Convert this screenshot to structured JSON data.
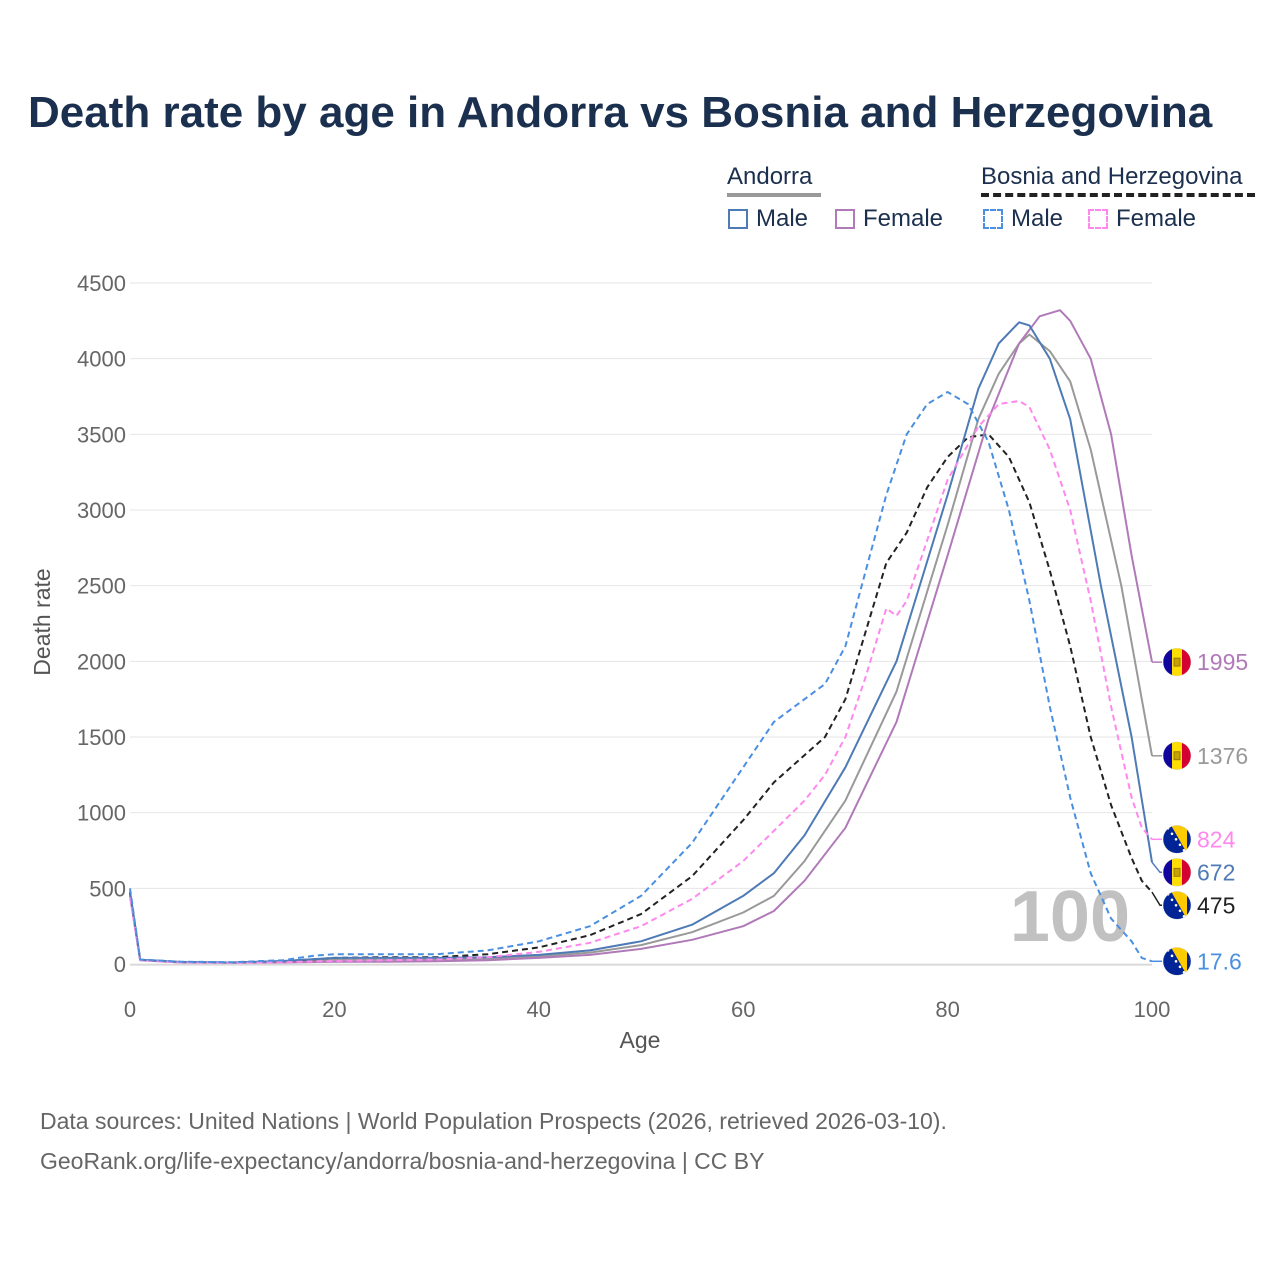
{
  "title": "Death rate by age in Andorra vs Bosnia and Herzegovina",
  "legend": {
    "groups": [
      {
        "label": "Andorra",
        "line_color": "#999999",
        "line_style": "solid",
        "items": [
          {
            "label": "Male",
            "color": "#4e7ab5",
            "style": "solid"
          },
          {
            "label": "Female",
            "color": "#b07ab8",
            "style": "solid"
          }
        ]
      },
      {
        "label": "Bosnia and Herzegovina",
        "line_color": "#222222",
        "line_style": "dashed",
        "items": [
          {
            "label": "Male",
            "color": "#4a8fe0",
            "style": "dashed"
          },
          {
            "label": "Female",
            "color": "#ff88ee",
            "style": "dashed"
          }
        ]
      }
    ]
  },
  "year_watermark": "100",
  "footer": {
    "line1": "Data sources: United Nations | World Population Prospects (2026, retrieved 2026-03-10).",
    "line2": "GeoRank.org/life-expectancy/andorra/bosnia-and-herzegovina | CC BY"
  },
  "chart_data": {
    "type": "line",
    "title": "Death rate by age in Andorra vs Bosnia and Herzegovina",
    "xlabel": "Age",
    "ylabel": "Death rate",
    "xlim": [
      0,
      100
    ],
    "ylim": [
      0,
      4500
    ],
    "xticks": [
      0,
      20,
      40,
      60,
      80,
      100
    ],
    "yticks": [
      0,
      500,
      1000,
      1500,
      2000,
      2500,
      3000,
      3500,
      4000,
      4500
    ],
    "grid": true,
    "series": [
      {
        "name": "Andorra Male",
        "country": "Andorra",
        "sex": "Male",
        "color": "#4e7ab5",
        "dash": false,
        "end_label": "672",
        "points": [
          [
            0,
            480
          ],
          [
            1,
            28
          ],
          [
            5,
            13
          ],
          [
            10,
            10
          ],
          [
            15,
            20
          ],
          [
            20,
            40
          ],
          [
            25,
            40
          ],
          [
            30,
            40
          ],
          [
            35,
            45
          ],
          [
            40,
            60
          ],
          [
            45,
            90
          ],
          [
            50,
            150
          ],
          [
            55,
            260
          ],
          [
            60,
            450
          ],
          [
            63,
            600
          ],
          [
            66,
            850
          ],
          [
            70,
            1300
          ],
          [
            75,
            2000
          ],
          [
            80,
            3100
          ],
          [
            83,
            3800
          ],
          [
            85,
            4100
          ],
          [
            87,
            4240
          ],
          [
            88,
            4220
          ],
          [
            90,
            4000
          ],
          [
            92,
            3600
          ],
          [
            95,
            2500
          ],
          [
            98,
            1500
          ],
          [
            100,
            672
          ]
        ]
      },
      {
        "name": "Andorra Female",
        "country": "Andorra",
        "sex": "Female",
        "color": "#b07ab8",
        "dash": false,
        "end_label": "1995",
        "points": [
          [
            0,
            450
          ],
          [
            1,
            25
          ],
          [
            5,
            10
          ],
          [
            10,
            8
          ],
          [
            15,
            10
          ],
          [
            20,
            15
          ],
          [
            25,
            15
          ],
          [
            30,
            18
          ],
          [
            35,
            25
          ],
          [
            40,
            40
          ],
          [
            45,
            60
          ],
          [
            50,
            100
          ],
          [
            55,
            160
          ],
          [
            60,
            250
          ],
          [
            63,
            350
          ],
          [
            66,
            550
          ],
          [
            70,
            900
          ],
          [
            75,
            1600
          ],
          [
            80,
            2700
          ],
          [
            84,
            3600
          ],
          [
            87,
            4100
          ],
          [
            89,
            4280
          ],
          [
            91,
            4320
          ],
          [
            92,
            4250
          ],
          [
            94,
            4000
          ],
          [
            96,
            3500
          ],
          [
            98,
            2700
          ],
          [
            100,
            1995
          ]
        ]
      },
      {
        "name": "Andorra Total",
        "country": "Andorra",
        "sex": "Total",
        "color": "#999999",
        "dash": false,
        "end_label": "1376",
        "points": [
          [
            0,
            465
          ],
          [
            1,
            26
          ],
          [
            5,
            12
          ],
          [
            10,
            9
          ],
          [
            15,
            15
          ],
          [
            20,
            28
          ],
          [
            25,
            28
          ],
          [
            30,
            30
          ],
          [
            35,
            35
          ],
          [
            40,
            50
          ],
          [
            45,
            75
          ],
          [
            50,
            125
          ],
          [
            55,
            210
          ],
          [
            60,
            340
          ],
          [
            63,
            450
          ],
          [
            66,
            680
          ],
          [
            70,
            1080
          ],
          [
            75,
            1800
          ],
          [
            80,
            2900
          ],
          [
            83,
            3600
          ],
          [
            85,
            3900
          ],
          [
            87,
            4100
          ],
          [
            88,
            4160
          ],
          [
            90,
            4050
          ],
          [
            92,
            3850
          ],
          [
            94,
            3400
          ],
          [
            97,
            2500
          ],
          [
            100,
            1376
          ]
        ]
      },
      {
        "name": "Bosnia and Herzegovina Male",
        "country": "Bosnia and Herzegovina",
        "sex": "Male",
        "color": "#4a8fe0",
        "dash": true,
        "end_label": "17.6",
        "points": [
          [
            0,
            500
          ],
          [
            1,
            30
          ],
          [
            5,
            15
          ],
          [
            10,
            12
          ],
          [
            15,
            25
          ],
          [
            18,
            55
          ],
          [
            20,
            65
          ],
          [
            25,
            65
          ],
          [
            30,
            65
          ],
          [
            35,
            90
          ],
          [
            40,
            150
          ],
          [
            45,
            250
          ],
          [
            50,
            450
          ],
          [
            55,
            800
          ],
          [
            60,
            1300
          ],
          [
            63,
            1600
          ],
          [
            66,
            1750
          ],
          [
            68,
            1850
          ],
          [
            70,
            2100
          ],
          [
            72,
            2600
          ],
          [
            74,
            3100
          ],
          [
            76,
            3500
          ],
          [
            78,
            3700
          ],
          [
            80,
            3780
          ],
          [
            82,
            3700
          ],
          [
            84,
            3450
          ],
          [
            86,
            3000
          ],
          [
            88,
            2400
          ],
          [
            90,
            1700
          ],
          [
            92,
            1100
          ],
          [
            94,
            600
          ],
          [
            96,
            300
          ],
          [
            98,
            150
          ],
          [
            99,
            40
          ],
          [
            100,
            17.6
          ]
        ]
      },
      {
        "name": "Bosnia and Herzegovina Female",
        "country": "Bosnia and Herzegovina",
        "sex": "Female",
        "color": "#ff88ee",
        "dash": true,
        "end_label": "824",
        "points": [
          [
            0,
            440
          ],
          [
            1,
            25
          ],
          [
            5,
            10
          ],
          [
            10,
            8
          ],
          [
            15,
            12
          ],
          [
            20,
            20
          ],
          [
            25,
            25
          ],
          [
            30,
            30
          ],
          [
            35,
            45
          ],
          [
            40,
            80
          ],
          [
            45,
            140
          ],
          [
            50,
            250
          ],
          [
            55,
            430
          ],
          [
            60,
            680
          ],
          [
            63,
            880
          ],
          [
            66,
            1080
          ],
          [
            68,
            1250
          ],
          [
            70,
            1500
          ],
          [
            72,
            1900
          ],
          [
            74,
            2350
          ],
          [
            75,
            2300
          ],
          [
            76,
            2400
          ],
          [
            78,
            2800
          ],
          [
            80,
            3200
          ],
          [
            83,
            3550
          ],
          [
            85,
            3700
          ],
          [
            87,
            3720
          ],
          [
            88,
            3680
          ],
          [
            90,
            3400
          ],
          [
            92,
            3000
          ],
          [
            94,
            2400
          ],
          [
            96,
            1700
          ],
          [
            98,
            1100
          ],
          [
            99,
            900
          ],
          [
            100,
            824
          ]
        ]
      },
      {
        "name": "Bosnia and Herzegovina Total",
        "country": "Bosnia and Herzegovina",
        "sex": "Total",
        "color": "#222222",
        "dash": true,
        "end_label": "475",
        "points": [
          [
            0,
            470
          ],
          [
            1,
            28
          ],
          [
            5,
            12
          ],
          [
            10,
            10
          ],
          [
            15,
            18
          ],
          [
            20,
            40
          ],
          [
            25,
            45
          ],
          [
            30,
            45
          ],
          [
            35,
            65
          ],
          [
            40,
            110
          ],
          [
            45,
            190
          ],
          [
            50,
            330
          ],
          [
            55,
            580
          ],
          [
            60,
            950
          ],
          [
            63,
            1200
          ],
          [
            66,
            1380
          ],
          [
            68,
            1500
          ],
          [
            70,
            1750
          ],
          [
            72,
            2200
          ],
          [
            74,
            2650
          ],
          [
            76,
            2850
          ],
          [
            78,
            3150
          ],
          [
            80,
            3350
          ],
          [
            82,
            3480
          ],
          [
            84,
            3500
          ],
          [
            86,
            3350
          ],
          [
            88,
            3050
          ],
          [
            90,
            2600
          ],
          [
            92,
            2100
          ],
          [
            94,
            1500
          ],
          [
            96,
            1050
          ],
          [
            98,
            700
          ],
          [
            99,
            550
          ],
          [
            100,
            475
          ]
        ]
      }
    ]
  }
}
